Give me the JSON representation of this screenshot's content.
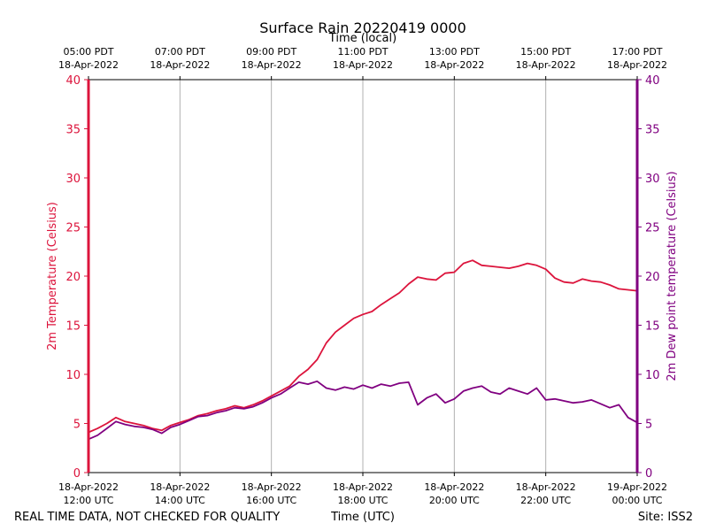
{
  "chart_data": {
    "type": "line",
    "title": "Surface Rain 20220419 0000",
    "top_axis_label": "Time (local)",
    "xlabel": "Time (UTC)",
    "ylabel_left": "2m Temperature (Celsius)",
    "ylabel_right": "2m Dew point temperature (Celsius)",
    "ylim": [
      0,
      40
    ],
    "yticks": [
      "0",
      "5",
      "10",
      "15",
      "20",
      "25",
      "30",
      "35",
      "40"
    ],
    "x_range_hours": [
      12,
      24
    ],
    "grid": "vertical",
    "bottom_ticks": [
      {
        "date": "18-Apr-2022",
        "time": "12:00 UTC"
      },
      {
        "date": "18-Apr-2022",
        "time": "14:00 UTC"
      },
      {
        "date": "18-Apr-2022",
        "time": "16:00 UTC"
      },
      {
        "date": "18-Apr-2022",
        "time": "18:00 UTC"
      },
      {
        "date": "18-Apr-2022",
        "time": "20:00 UTC"
      },
      {
        "date": "18-Apr-2022",
        "time": "22:00 UTC"
      },
      {
        "date": "19-Apr-2022",
        "time": "00:00 UTC"
      }
    ],
    "top_ticks": [
      {
        "time": "05:00 PDT",
        "date": "18-Apr-2022"
      },
      {
        "time": "07:00 PDT",
        "date": "18-Apr-2022"
      },
      {
        "time": "09:00 PDT",
        "date": "18-Apr-2022"
      },
      {
        "time": "11:00 PDT",
        "date": "18-Apr-2022"
      },
      {
        "time": "13:00 PDT",
        "date": "18-Apr-2022"
      },
      {
        "time": "15:00 PDT",
        "date": "18-Apr-2022"
      },
      {
        "time": "17:00 PDT",
        "date": "18-Apr-2022"
      }
    ],
    "series": [
      {
        "name": "2m Temperature",
        "color": "#dc143c",
        "x_hours": [
          12.0,
          12.2,
          12.4,
          12.6,
          12.8,
          13.0,
          13.2,
          13.4,
          13.6,
          13.8,
          14.0,
          14.2,
          14.4,
          14.6,
          14.8,
          15.0,
          15.2,
          15.4,
          15.6,
          15.8,
          16.0,
          16.2,
          16.4,
          16.6,
          16.8,
          17.0,
          17.2,
          17.4,
          17.6,
          17.8,
          18.0,
          18.2,
          18.4,
          18.6,
          18.8,
          19.0,
          19.2,
          19.4,
          19.6,
          19.8,
          20.0,
          20.2,
          20.4,
          20.6,
          20.8,
          21.0,
          21.2,
          21.4,
          21.6,
          21.8,
          22.0,
          22.2,
          22.4,
          22.6,
          22.8,
          23.0,
          23.2,
          23.4,
          23.6,
          23.8,
          24.0
        ],
        "values": [
          4.1,
          4.5,
          5.0,
          5.6,
          5.2,
          5.0,
          4.8,
          4.5,
          4.3,
          4.8,
          5.1,
          5.4,
          5.8,
          6.0,
          6.3,
          6.5,
          6.8,
          6.6,
          6.9,
          7.3,
          7.8,
          8.3,
          8.8,
          9.8,
          10.5,
          11.5,
          13.2,
          14.3,
          15.0,
          15.7,
          16.1,
          16.4,
          17.1,
          17.7,
          18.3,
          19.2,
          19.9,
          19.7,
          19.6,
          20.3,
          20.4,
          21.3,
          21.6,
          21.1,
          21.0,
          20.9,
          20.8,
          21.0,
          21.3,
          21.1,
          20.7,
          19.8,
          19.4,
          19.3,
          19.7,
          19.5,
          19.4,
          19.1,
          18.7,
          18.6,
          18.5
        ]
      },
      {
        "name": "2m Dew point temperature",
        "color": "#800080",
        "x_hours": [
          12.0,
          12.2,
          12.4,
          12.6,
          12.8,
          13.0,
          13.2,
          13.4,
          13.6,
          13.8,
          14.0,
          14.2,
          14.4,
          14.6,
          14.8,
          15.0,
          15.2,
          15.4,
          15.6,
          15.8,
          16.0,
          16.2,
          16.4,
          16.6,
          16.8,
          17.0,
          17.2,
          17.4,
          17.6,
          17.8,
          18.0,
          18.2,
          18.4,
          18.6,
          18.8,
          19.0,
          19.2,
          19.4,
          19.6,
          19.8,
          20.0,
          20.2,
          20.4,
          20.6,
          20.8,
          21.0,
          21.2,
          21.4,
          21.6,
          21.8,
          22.0,
          22.2,
          22.4,
          22.6,
          22.8,
          23.0,
          23.2,
          23.4,
          23.6,
          23.8,
          24.0
        ],
        "values": [
          3.4,
          3.8,
          4.5,
          5.2,
          4.9,
          4.7,
          4.6,
          4.4,
          4.0,
          4.6,
          4.9,
          5.3,
          5.7,
          5.8,
          6.1,
          6.3,
          6.6,
          6.5,
          6.7,
          7.1,
          7.6,
          8.0,
          8.6,
          9.2,
          9.0,
          9.3,
          8.6,
          8.4,
          8.7,
          8.5,
          8.9,
          8.6,
          9.0,
          8.8,
          9.1,
          9.2,
          6.9,
          7.6,
          8.0,
          7.1,
          7.5,
          8.3,
          8.6,
          8.8,
          8.2,
          8.0,
          8.6,
          8.3,
          8.0,
          8.6,
          7.4,
          7.5,
          7.3,
          7.1,
          7.2,
          7.4,
          7.0,
          6.6,
          6.9,
          5.6,
          5.1
        ]
      }
    ]
  },
  "footer": {
    "disclaimer": "REAL TIME DATA, NOT CHECKED FOR QUALITY",
    "site": "Site: ISS2"
  },
  "colors": {
    "left_axis": "#dc143c",
    "right_axis": "#800080",
    "grid": "#b0b0b0"
  }
}
